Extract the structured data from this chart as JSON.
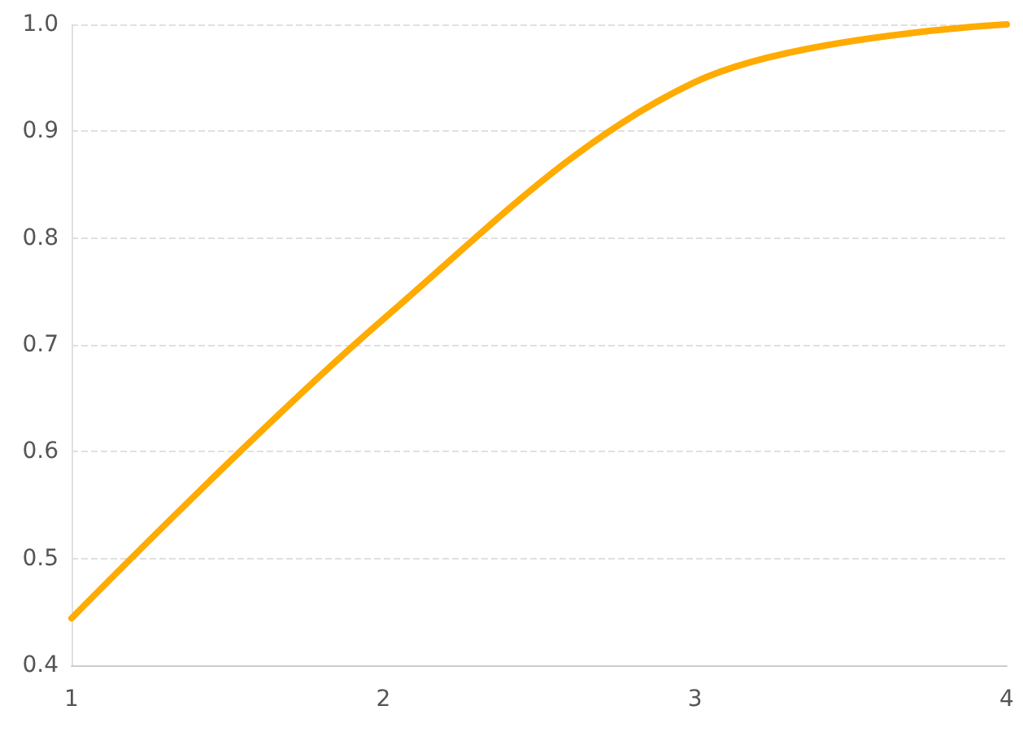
{
  "chart_data": {
    "type": "line",
    "x": [
      1,
      2,
      3,
      4
    ],
    "series": [
      {
        "color": "#ffab00",
        "values": [
          0.444,
          0.724,
          0.946,
          1.0
        ]
      }
    ],
    "xlim": [
      1,
      4
    ],
    "xticks": [
      1,
      2,
      3,
      4
    ],
    "ylim": [
      0.4,
      1.0
    ],
    "yticks": [
      0.4,
      0.5,
      0.6,
      0.7,
      0.8,
      0.9,
      {
        "value": 1.0,
        "label": "1.0"
      }
    ],
    "grid": "y",
    "marker": "none",
    "line_style": "solid"
  }
}
